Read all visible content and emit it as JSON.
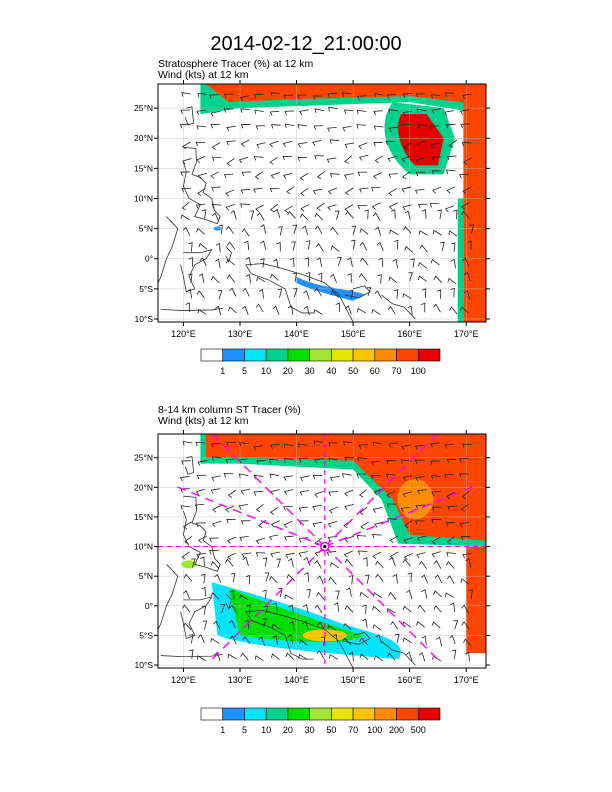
{
  "title": "2014-02-12_21:00:00",
  "panels": [
    {
      "subtitle_line1": "Stratosphere Tracer   (%)     at   12 km",
      "subtitle_line2": "Wind    (kts)      at   12 km",
      "colorbar": {
        "labels": [
          "1",
          "5",
          "10",
          "20",
          "30",
          "40",
          "50",
          "60",
          "70",
          "100"
        ],
        "colors": [
          "#ffffff",
          "#1e90ff",
          "#00e5ff",
          "#00d18c",
          "#00e000",
          "#a0e632",
          "#e6e600",
          "#ffc400",
          "#ff8c00",
          "#ff4500",
          "#e60000"
        ]
      }
    },
    {
      "subtitle_line1": "8-14 km column ST Tracer    (%)",
      "subtitle_line2": "Wind    (kts)      at   12 km",
      "colorbar": {
        "labels": [
          "1",
          "5",
          "10",
          "20",
          "30",
          "50",
          "70",
          "100",
          "200",
          "500"
        ],
        "colors": [
          "#ffffff",
          "#1e90ff",
          "#00e5ff",
          "#00d18c",
          "#00e000",
          "#a0e632",
          "#e6e600",
          "#ffc400",
          "#ff8c00",
          "#ff4500",
          "#e60000"
        ]
      }
    }
  ],
  "map_axes": {
    "lon_labels": [
      "120°E",
      "130°E",
      "140°E",
      "150°E",
      "160°E",
      "170°E"
    ],
    "lat_labels": [
      "25°N",
      "20°N",
      "15°N",
      "10°N",
      "5°N",
      "0°",
      "5°S",
      "10°S"
    ],
    "lon_values": [
      120,
      130,
      140,
      150,
      160,
      170
    ],
    "lat_values": [
      25,
      20,
      15,
      10,
      5,
      0,
      -5,
      -10
    ],
    "lon_range": [
      115.5,
      173.5
    ],
    "lat_range": [
      -10.5,
      29
    ]
  },
  "marker": {
    "lon": 145,
    "lat": 10,
    "color": "#ff00ff"
  }
}
